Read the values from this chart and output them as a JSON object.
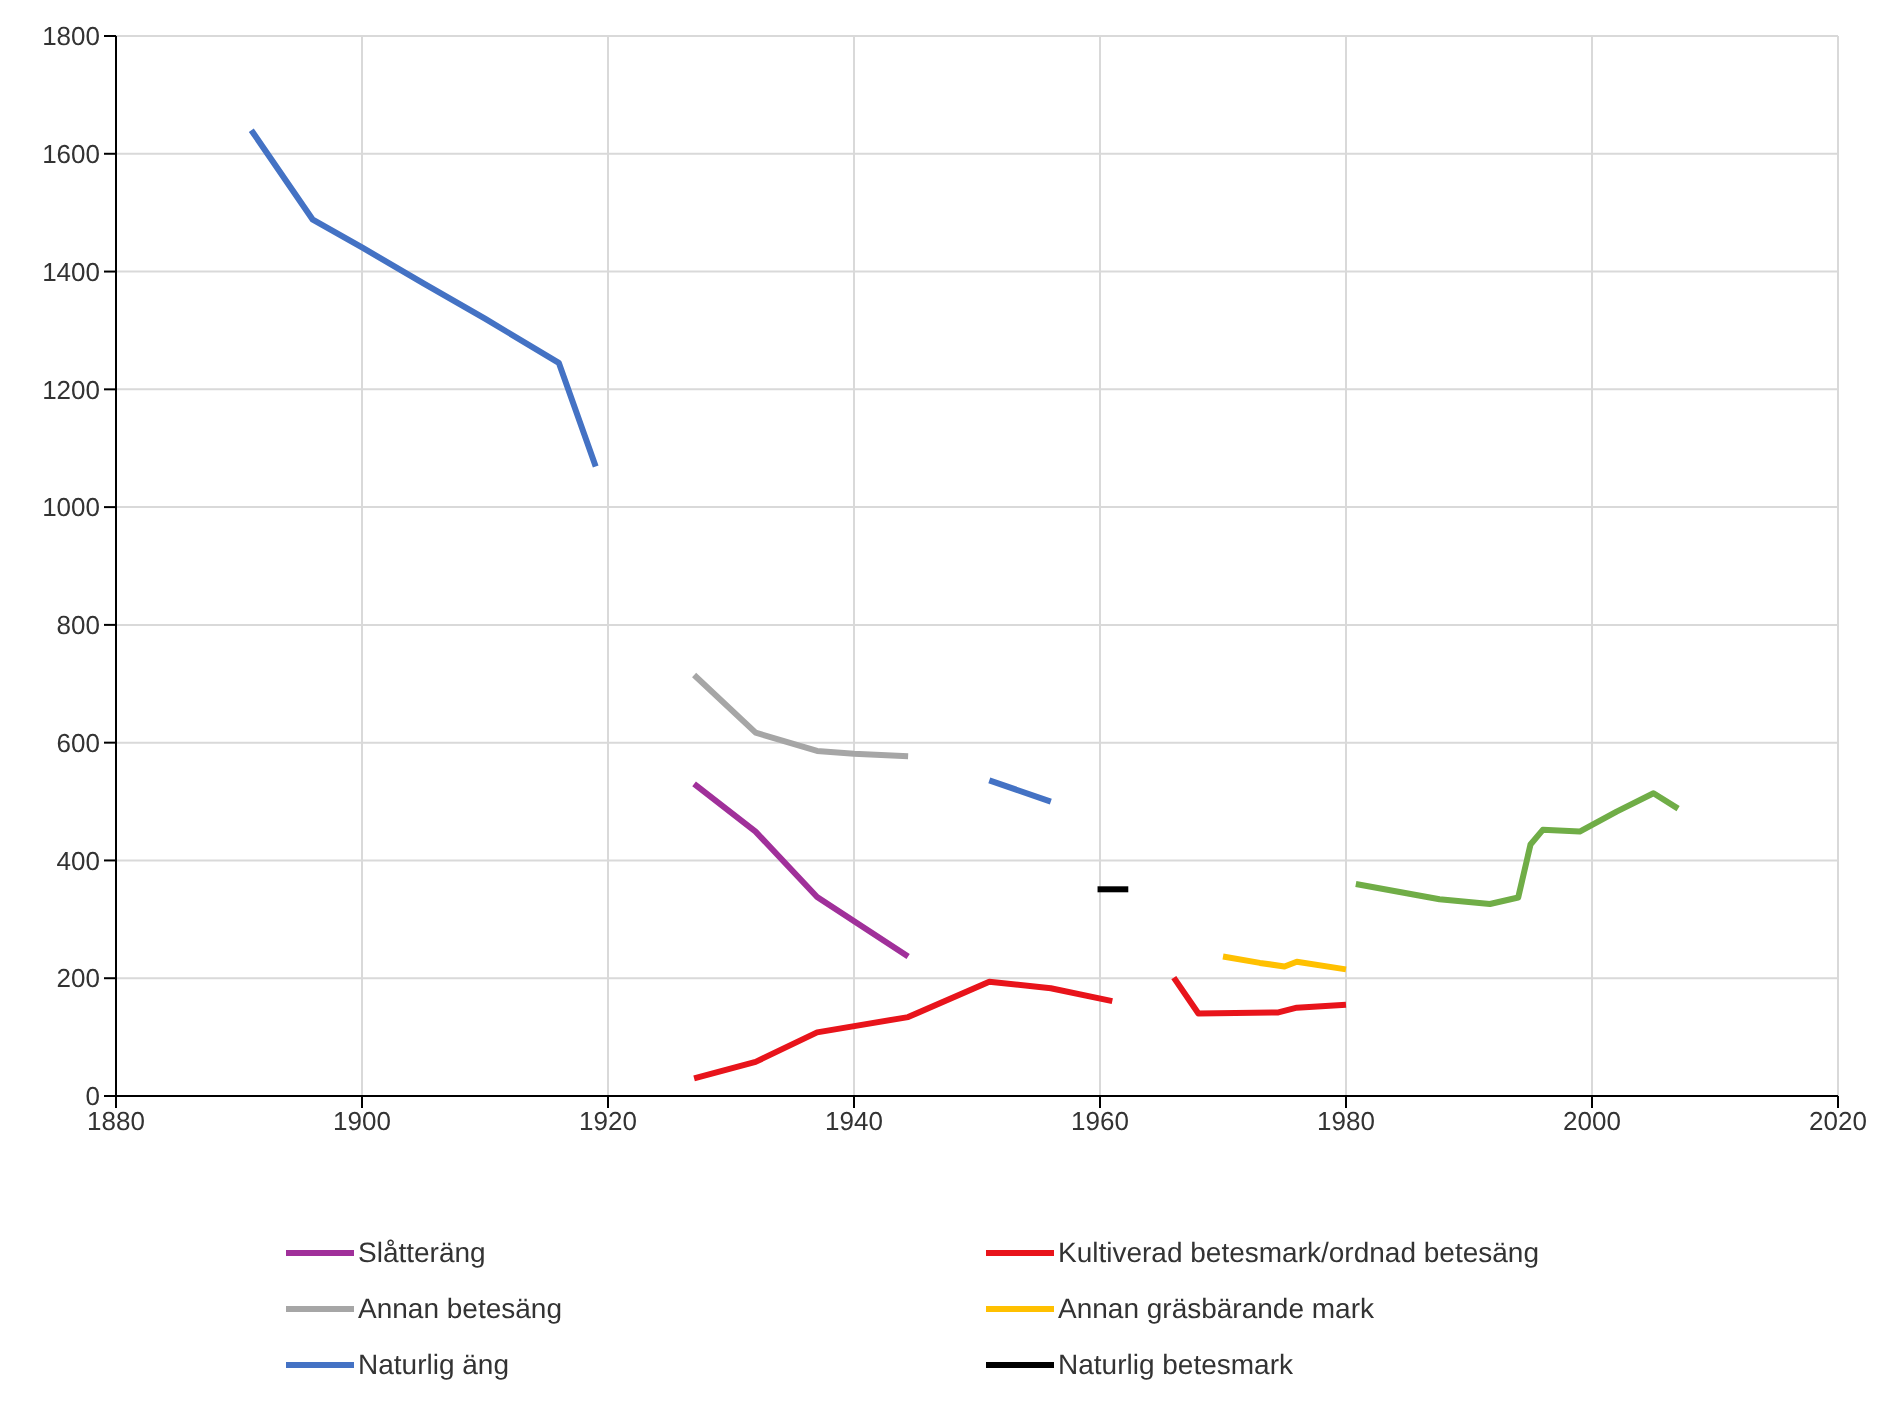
{
  "chart_data": {
    "type": "line",
    "xlim": [
      1880,
      2020
    ],
    "xticks": [
      1880,
      1900,
      1920,
      1940,
      1960,
      1980,
      2000,
      2020
    ],
    "ylim": [
      0,
      1800
    ],
    "yticks": [
      0,
      200,
      400,
      600,
      800,
      1000,
      1200,
      1400,
      1600,
      1800
    ],
    "grid": true,
    "legend": "bottom",
    "marker": "none",
    "line_style": "solid",
    "series": [
      {
        "name": "Slåtteräng",
        "color": "#a0309a",
        "x": [
          1927,
          1932,
          1937,
          1944.4
        ],
        "values": [
          530,
          449,
          338,
          237
        ]
      },
      {
        "name": "Kultiverad betesmark/ordnad betesäng",
        "color": "#e8141b",
        "x": [
          1927,
          1932,
          1937,
          1944.4,
          1951,
          1956,
          1961,
          1964,
          1966,
          1968,
          1974.5,
          1976,
          1980
        ],
        "values": [
          30,
          58,
          108,
          134,
          194,
          183,
          161,
          null,
          201,
          140,
          142,
          150,
          155
        ]
      },
      {
        "name": "Annan betesäng",
        "color": "#a6a6a6",
        "x": [
          1927,
          1932,
          1937,
          1940,
          1944.4
        ],
        "values": [
          715,
          617,
          586,
          581,
          577
        ]
      },
      {
        "name": "Annan gräsbärande mark",
        "color": "#ffc000",
        "x": [
          1970,
          1973,
          1975,
          1976,
          1980
        ],
        "values": [
          237,
          226,
          220,
          228,
          215
        ]
      },
      {
        "name": "Naturlig äng",
        "color": "#4472c4",
        "x": [
          1891,
          1896,
          1900,
          1905,
          1910,
          1916,
          1919,
          1935,
          1951,
          1956
        ],
        "values": [
          1640,
          1488,
          1441,
          1380,
          1320,
          1245,
          1069,
          null,
          536,
          500
        ]
      },
      {
        "name": "Naturlig betesmark",
        "color": "#000000",
        "x": [
          1959.8,
          1962.3
        ],
        "values": [
          351,
          351
        ]
      },
      {
        "color": "#70ad47",
        "x": [
          1980.8,
          1987.6,
          1991.7,
          1994,
          1995,
          1996,
          1999,
          2002,
          2005,
          2007
        ],
        "values": [
          360,
          334,
          326,
          337,
          427,
          452,
          449,
          483,
          514,
          488
        ]
      }
    ]
  }
}
